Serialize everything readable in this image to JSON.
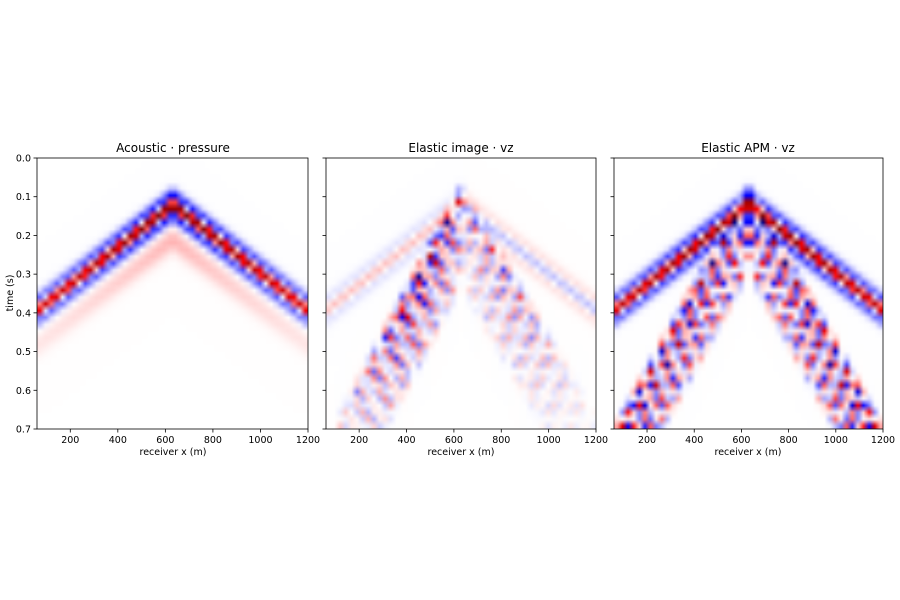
{
  "chart_data": [
    {
      "type": "heatmap",
      "title": "Acoustic · pressure",
      "xlabel": "receiver x (m)",
      "ylabel": "time (s)",
      "xlim": [
        60,
        1200
      ],
      "ylim": [
        0.7,
        0.0
      ],
      "x_ticks": [
        200,
        400,
        600,
        800,
        1000,
        1200
      ],
      "y_ticks": [
        0.0,
        0.1,
        0.2,
        0.3,
        0.4,
        0.5,
        0.6,
        0.7
      ],
      "colormap": "seismic",
      "colormap_colors": [
        "#00004c",
        "#0000ff",
        "#ffffff",
        "#ff0000",
        "#7f0000"
      ],
      "source_x": 630,
      "events": [
        {
          "kind": "direct_arrival",
          "apex_time": 0.07,
          "slowness_s_per_m": 0.00048,
          "amplitude": 1.0,
          "cycles": 1.6,
          "decay": 0.0009
        }
      ]
    },
    {
      "type": "heatmap",
      "title": "Elastic image · vz",
      "xlabel": "receiver x (m)",
      "ylabel": "",
      "xlim": [
        60,
        1200
      ],
      "ylim": [
        0.7,
        0.0
      ],
      "x_ticks": [
        200,
        400,
        600,
        800,
        1000,
        1200
      ],
      "y_ticks": [
        0.0,
        0.1,
        0.2,
        0.3,
        0.4,
        0.5,
        0.6,
        0.7
      ],
      "colormap": "seismic",
      "source_x": 630,
      "events": [
        {
          "kind": "faint_direct",
          "apex_time": 0.09,
          "slowness_s_per_m": 0.00048,
          "amplitude": 0.12
        },
        {
          "kind": "converted_left",
          "apex_time": 0.1,
          "slowness_s_per_m": 0.0012,
          "amplitude": 0.9
        },
        {
          "kind": "converted_right",
          "apex_time": 0.12,
          "slowness_s_per_m": 0.00105,
          "amplitude": 0.45
        }
      ]
    },
    {
      "type": "heatmap",
      "title": "Elastic APM · vz",
      "xlabel": "receiver x (m)",
      "ylabel": "",
      "xlim": [
        60,
        1200
      ],
      "ylim": [
        0.7,
        0.0
      ],
      "x_ticks": [
        200,
        400,
        600,
        800,
        1000,
        1200
      ],
      "y_ticks": [
        0.0,
        0.1,
        0.2,
        0.3,
        0.4,
        0.5,
        0.6,
        0.7
      ],
      "colormap": "seismic",
      "source_x": 630,
      "events": [
        {
          "kind": "direct_arrival",
          "apex_time": 0.07,
          "slowness_s_per_m": 0.00048,
          "amplitude": 1.0
        },
        {
          "kind": "converted_symmetric",
          "apex_time": 0.1,
          "slowness_s_per_m": 0.0011,
          "amplitude": 0.95
        }
      ]
    }
  ]
}
